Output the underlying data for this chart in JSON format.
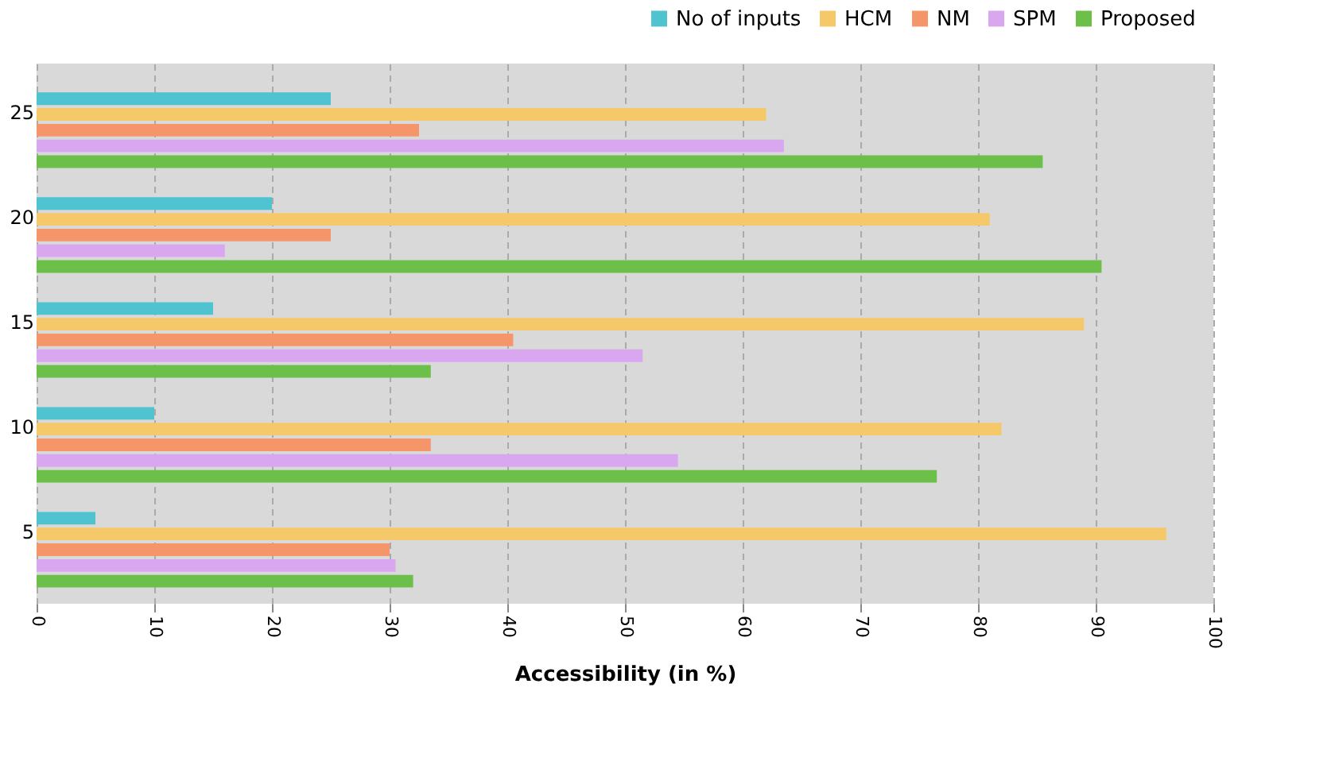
{
  "chart_data": {
    "type": "bar",
    "orientation": "horizontal",
    "xlabel": "Accessibility (in %)",
    "categories": [
      "25",
      "20",
      "15",
      "10",
      "5"
    ],
    "series": [
      {
        "name": "No of inputs",
        "color": "#4fc3d0",
        "values": [
          25,
          20,
          15,
          10,
          5
        ]
      },
      {
        "name": "HCM",
        "color": "#f5c96a",
        "values": [
          62,
          81,
          89,
          82,
          96
        ]
      },
      {
        "name": "NM",
        "color": "#f4956a",
        "values": [
          32.5,
          25,
          40.5,
          33.5,
          30
        ]
      },
      {
        "name": "SPM",
        "color": "#d9a6f0",
        "values": [
          63.5,
          16,
          51.5,
          54.5,
          30.5
        ]
      },
      {
        "name": "Proposed",
        "color": "#6cc04a",
        "values": [
          85.5,
          90.5,
          33.5,
          76.5,
          32
        ]
      }
    ],
    "xlim": [
      0,
      100
    ],
    "xticks": [
      0,
      10,
      20,
      30,
      40,
      50,
      60,
      70,
      80,
      90,
      100
    ],
    "grid": "x",
    "legend": "top right"
  }
}
